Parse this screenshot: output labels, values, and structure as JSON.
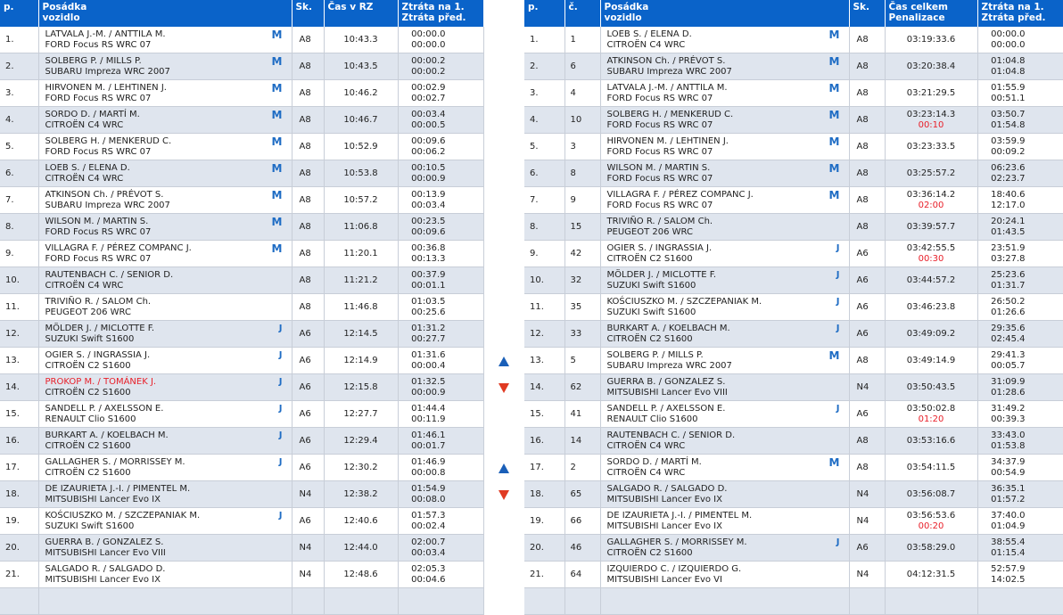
{
  "colors": {
    "header": "#0a63c9",
    "row_alt": "#dfe5ee",
    "class_badge": "#1e6cc4",
    "highlight": "#e8202a",
    "arrow_up": "#1a5fb8",
    "arrow_down": "#e03a22"
  },
  "stage": {
    "headers": {
      "pos": "p.",
      "crew": "Posádka",
      "car": "vozidlo",
      "sk": "Sk.",
      "time": "Čas v RZ",
      "loss1": "Ztráta na 1.",
      "loss2": "Ztráta před."
    },
    "rows": [
      {
        "pos": "1.",
        "crew": "LATVALA J.-M. / ANTTILA M.",
        "car": "FORD Focus RS WRC 07",
        "cls": "M",
        "sk": "A8",
        "time": "10:43.3",
        "loss1": "00:00.0",
        "loss2": "00:00.0"
      },
      {
        "pos": "2.",
        "crew": "SOLBERG P. / MILLS P.",
        "car": "SUBARU Impreza WRC 2007",
        "cls": "M",
        "sk": "A8",
        "time": "10:43.5",
        "loss1": "00:00.2",
        "loss2": "00:00.2"
      },
      {
        "pos": "3.",
        "crew": "HIRVONEN M. / LEHTINEN J.",
        "car": "FORD Focus RS WRC 07",
        "cls": "M",
        "sk": "A8",
        "time": "10:46.2",
        "loss1": "00:02.9",
        "loss2": "00:02.7"
      },
      {
        "pos": "4.",
        "crew": "SORDO D. / MARTÍ M.",
        "car": "CITROËN C4 WRC",
        "cls": "M",
        "sk": "A8",
        "time": "10:46.7",
        "loss1": "00:03.4",
        "loss2": "00:00.5"
      },
      {
        "pos": "5.",
        "crew": "SOLBERG H. / MENKERUD C.",
        "car": "FORD Focus RS WRC 07",
        "cls": "M",
        "sk": "A8",
        "time": "10:52.9",
        "loss1": "00:09.6",
        "loss2": "00:06.2"
      },
      {
        "pos": "6.",
        "crew": "LOEB S. / ELENA D.",
        "car": "CITROËN C4 WRC",
        "cls": "M",
        "sk": "A8",
        "time": "10:53.8",
        "loss1": "00:10.5",
        "loss2": "00:00.9"
      },
      {
        "pos": "7.",
        "crew": "ATKINSON Ch. / PRÉVOT S.",
        "car": "SUBARU Impreza WRC 2007",
        "cls": "M",
        "sk": "A8",
        "time": "10:57.2",
        "loss1": "00:13.9",
        "loss2": "00:03.4"
      },
      {
        "pos": "8.",
        "crew": "WILSON M. / MARTIN S.",
        "car": "FORD Focus RS WRC 07",
        "cls": "M",
        "sk": "A8",
        "time": "11:06.8",
        "loss1": "00:23.5",
        "loss2": "00:09.6"
      },
      {
        "pos": "9.",
        "crew": "VILLAGRA F. / PÉREZ COMPANC J.",
        "car": "FORD Focus RS WRC 07",
        "cls": "M",
        "sk": "A8",
        "time": "11:20.1",
        "loss1": "00:36.8",
        "loss2": "00:13.3"
      },
      {
        "pos": "10.",
        "crew": "RAUTENBACH C. / SENIOR D.",
        "car": "CITROËN C4 WRC",
        "cls": "",
        "sk": "A8",
        "time": "11:21.2",
        "loss1": "00:37.9",
        "loss2": "00:01.1"
      },
      {
        "pos": "11.",
        "crew": "TRIVIÑO R. / SALOM Ch.",
        "car": "PEUGEOT 206 WRC",
        "cls": "",
        "sk": "A8",
        "time": "11:46.8",
        "loss1": "01:03.5",
        "loss2": "00:25.6"
      },
      {
        "pos": "12.",
        "crew": "MÖLDER J. / MICLOTTE F.",
        "car": "SUZUKI Swift S1600",
        "cls": "J",
        "sk": "A6",
        "time": "12:14.5",
        "loss1": "01:31.2",
        "loss2": "00:27.7"
      },
      {
        "pos": "13.",
        "crew": "OGIER S. / INGRASSIA J.",
        "car": "CITROËN C2 S1600",
        "cls": "J",
        "sk": "A6",
        "time": "12:14.9",
        "loss1": "01:31.6",
        "loss2": "00:00.4"
      },
      {
        "pos": "14.",
        "crew": "PROKOP M. / TOMÁNEK J.",
        "car": "CITROËN C2 S1600",
        "cls": "J",
        "sk": "A6",
        "time": "12:15.8",
        "loss1": "01:32.5",
        "loss2": "00:00.9",
        "highlight": true
      },
      {
        "pos": "15.",
        "crew": "SANDELL P. / AXELSSON E.",
        "car": "RENAULT Clio S1600",
        "cls": "J",
        "sk": "A6",
        "time": "12:27.7",
        "loss1": "01:44.4",
        "loss2": "00:11.9"
      },
      {
        "pos": "16.",
        "crew": "BURKART A. / KOELBACH M.",
        "car": "CITROËN C2 S1600",
        "cls": "J",
        "sk": "A6",
        "time": "12:29.4",
        "loss1": "01:46.1",
        "loss2": "00:01.7"
      },
      {
        "pos": "17.",
        "crew": "GALLAGHER S. / MORRISSEY  M.",
        "car": "CITROËN C2 S1600",
        "cls": "J",
        "sk": "A6",
        "time": "12:30.2",
        "loss1": "01:46.9",
        "loss2": "00:00.8"
      },
      {
        "pos": "18.",
        "crew": "DE IZAURIETA J.-I. / PIMENTEL M.",
        "car": "MITSUBISHI Lancer Evo IX",
        "cls": "",
        "sk": "N4",
        "time": "12:38.2",
        "loss1": "01:54.9",
        "loss2": "00:08.0"
      },
      {
        "pos": "19.",
        "crew": "KOŚCIUSZKO M. / SZCZEPANIAK M.",
        "car": "SUZUKI Swift S1600",
        "cls": "J",
        "sk": "A6",
        "time": "12:40.6",
        "loss1": "01:57.3",
        "loss2": "00:02.4"
      },
      {
        "pos": "20.",
        "crew": "GUERRA B. / GONZALEZ S.",
        "car": "MITSUBISHI Lancer Evo VIII",
        "cls": "",
        "sk": "N4",
        "time": "12:44.0",
        "loss1": "02:00.7",
        "loss2": "00:03.4"
      },
      {
        "pos": "21.",
        "crew": "SALGADO R. / SALGADO D.",
        "car": "MITSUBISHI Lancer Evo IX",
        "cls": "",
        "sk": "N4",
        "time": "12:48.6",
        "loss1": "02:05.3",
        "loss2": "00:04.6"
      }
    ]
  },
  "arrows": [
    {
      "row": 13,
      "dir": "up",
      "icon": "arrow-up-icon"
    },
    {
      "row": 14,
      "dir": "down",
      "icon": "arrow-down-icon"
    },
    {
      "row": 17,
      "dir": "up",
      "icon": "arrow-up-icon"
    },
    {
      "row": 18,
      "dir": "down",
      "icon": "arrow-down-icon"
    }
  ],
  "overall": {
    "headers": {
      "pos": "p.",
      "no": "č.",
      "crew": "Posádka",
      "car": "vozidlo",
      "sk": "Sk.",
      "time": "Čas celkem",
      "pen": "Penalizace",
      "loss1": "Ztráta na 1.",
      "loss2": "Ztráta před."
    },
    "rows": [
      {
        "pos": "1.",
        "no": "1",
        "crew": "LOEB S. / ELENA D.",
        "car": "CITROËN C4 WRC",
        "cls": "M",
        "sk": "A8",
        "time": "03:19:33.6",
        "pen": "",
        "loss1": "00:00.0",
        "loss2": "00:00.0"
      },
      {
        "pos": "2.",
        "no": "6",
        "crew": "ATKINSON Ch. / PRÉVOT S.",
        "car": "SUBARU Impreza WRC 2007",
        "cls": "M",
        "sk": "A8",
        "time": "03:20:38.4",
        "pen": "",
        "loss1": "01:04.8",
        "loss2": "01:04.8"
      },
      {
        "pos": "3.",
        "no": "4",
        "crew": "LATVALA J.-M. / ANTTILA M.",
        "car": "FORD Focus RS WRC 07",
        "cls": "M",
        "sk": "A8",
        "time": "03:21:29.5",
        "pen": "",
        "loss1": "01:55.9",
        "loss2": "00:51.1"
      },
      {
        "pos": "4.",
        "no": "10",
        "crew": "SOLBERG H. / MENKERUD C.",
        "car": "FORD Focus RS WRC 07",
        "cls": "M",
        "sk": "A8",
        "time": "03:23:14.3",
        "pen": "00:10",
        "loss1": "03:50.7",
        "loss2": "01:54.8"
      },
      {
        "pos": "5.",
        "no": "3",
        "crew": "HIRVONEN M. / LEHTINEN J.",
        "car": "FORD Focus RS WRC 07",
        "cls": "M",
        "sk": "A8",
        "time": "03:23:33.5",
        "pen": "",
        "loss1": "03:59.9",
        "loss2": "00:09.2"
      },
      {
        "pos": "6.",
        "no": "8",
        "crew": "WILSON M. / MARTIN S.",
        "car": "FORD Focus RS WRC 07",
        "cls": "M",
        "sk": "A8",
        "time": "03:25:57.2",
        "pen": "",
        "loss1": "06:23.6",
        "loss2": "02:23.7"
      },
      {
        "pos": "7.",
        "no": "9",
        "crew": "VILLAGRA F. / PÉREZ COMPANC J.",
        "car": "FORD Focus RS WRC 07",
        "cls": "M",
        "sk": "A8",
        "time": "03:36:14.2",
        "pen": "02:00",
        "loss1": "18:40.6",
        "loss2": "12:17.0"
      },
      {
        "pos": "8.",
        "no": "15",
        "crew": "TRIVIÑO R. / SALOM Ch.",
        "car": "PEUGEOT 206 WRC",
        "cls": "",
        "sk": "A8",
        "time": "03:39:57.7",
        "pen": "",
        "loss1": "20:24.1",
        "loss2": "01:43.5"
      },
      {
        "pos": "9.",
        "no": "42",
        "crew": "OGIER S. / INGRASSIA J.",
        "car": "CITROËN C2 S1600",
        "cls": "J",
        "sk": "A6",
        "time": "03:42:55.5",
        "pen": "00:30",
        "loss1": "23:51.9",
        "loss2": "03:27.8"
      },
      {
        "pos": "10.",
        "no": "32",
        "crew": "MÖLDER J. / MICLOTTE F.",
        "car": "SUZUKI Swift S1600",
        "cls": "J",
        "sk": "A6",
        "time": "03:44:57.2",
        "pen": "",
        "loss1": "25:23.6",
        "loss2": "01:31.7"
      },
      {
        "pos": "11.",
        "no": "35",
        "crew": "KOŚCIUSZKO M. / SZCZEPANIAK M.",
        "car": "SUZUKI Swift S1600",
        "cls": "J",
        "sk": "A6",
        "time": "03:46:23.8",
        "pen": "",
        "loss1": "26:50.2",
        "loss2": "01:26.6"
      },
      {
        "pos": "12.",
        "no": "33",
        "crew": "BURKART A. / KOELBACH M.",
        "car": "CITROËN C2 S1600",
        "cls": "J",
        "sk": "A6",
        "time": "03:49:09.2",
        "pen": "",
        "loss1": "29:35.6",
        "loss2": "02:45.4"
      },
      {
        "pos": "13.",
        "no": "5",
        "crew": "SOLBERG P. / MILLS P.",
        "car": "SUBARU Impreza WRC 2007",
        "cls": "M",
        "sk": "A8",
        "time": "03:49:14.9",
        "pen": "",
        "loss1": "29:41.3",
        "loss2": "00:05.7"
      },
      {
        "pos": "14.",
        "no": "62",
        "crew": "GUERRA B. / GONZALEZ S.",
        "car": "MITSUBISHI Lancer Evo VIII",
        "cls": "",
        "sk": "N4",
        "time": "03:50:43.5",
        "pen": "",
        "loss1": "31:09.9",
        "loss2": "01:28.6"
      },
      {
        "pos": "15.",
        "no": "41",
        "crew": "SANDELL P. / AXELSSON E.",
        "car": "RENAULT Clio S1600",
        "cls": "J",
        "sk": "A6",
        "time": "03:50:02.8",
        "pen": "01:20",
        "loss1": "31:49.2",
        "loss2": "00:39.3"
      },
      {
        "pos": "16.",
        "no": "14",
        "crew": "RAUTENBACH C. / SENIOR D.",
        "car": "CITROËN C4 WRC",
        "cls": "",
        "sk": "A8",
        "time": "03:53:16.6",
        "pen": "",
        "loss1": "33:43.0",
        "loss2": "01:53.8"
      },
      {
        "pos": "17.",
        "no": "2",
        "crew": "SORDO D. / MARTÍ M.",
        "car": "CITROËN C4 WRC",
        "cls": "M",
        "sk": "A8",
        "time": "03:54:11.5",
        "pen": "",
        "loss1": "34:37.9",
        "loss2": "00:54.9"
      },
      {
        "pos": "18.",
        "no": "65",
        "crew": "SALGADO R. / SALGADO D.",
        "car": "MITSUBISHI Lancer Evo IX",
        "cls": "",
        "sk": "N4",
        "time": "03:56:08.7",
        "pen": "",
        "loss1": "36:35.1",
        "loss2": "01:57.2"
      },
      {
        "pos": "19.",
        "no": "66",
        "crew": "DE IZAURIETA J.-I. / PIMENTEL M.",
        "car": "MITSUBISHI Lancer Evo IX",
        "cls": "",
        "sk": "N4",
        "time": "03:56:53.6",
        "pen": "00:20",
        "loss1": "37:40.0",
        "loss2": "01:04.9"
      },
      {
        "pos": "20.",
        "no": "46",
        "crew": "GALLAGHER S. / MORRISSEY  M.",
        "car": "CITROËN C2 S1600",
        "cls": "J",
        "sk": "A6",
        "time": "03:58:29.0",
        "pen": "",
        "loss1": "38:55.4",
        "loss2": "01:15.4"
      },
      {
        "pos": "21.",
        "no": "64",
        "crew": "IZQUIERDO C. / IZQUIERDO G.",
        "car": "MITSUBISHI Lancer Evo VI",
        "cls": "",
        "sk": "N4",
        "time": "04:12:31.5",
        "pen": "",
        "loss1": "52:57.9",
        "loss2": "14:02.5"
      }
    ]
  }
}
